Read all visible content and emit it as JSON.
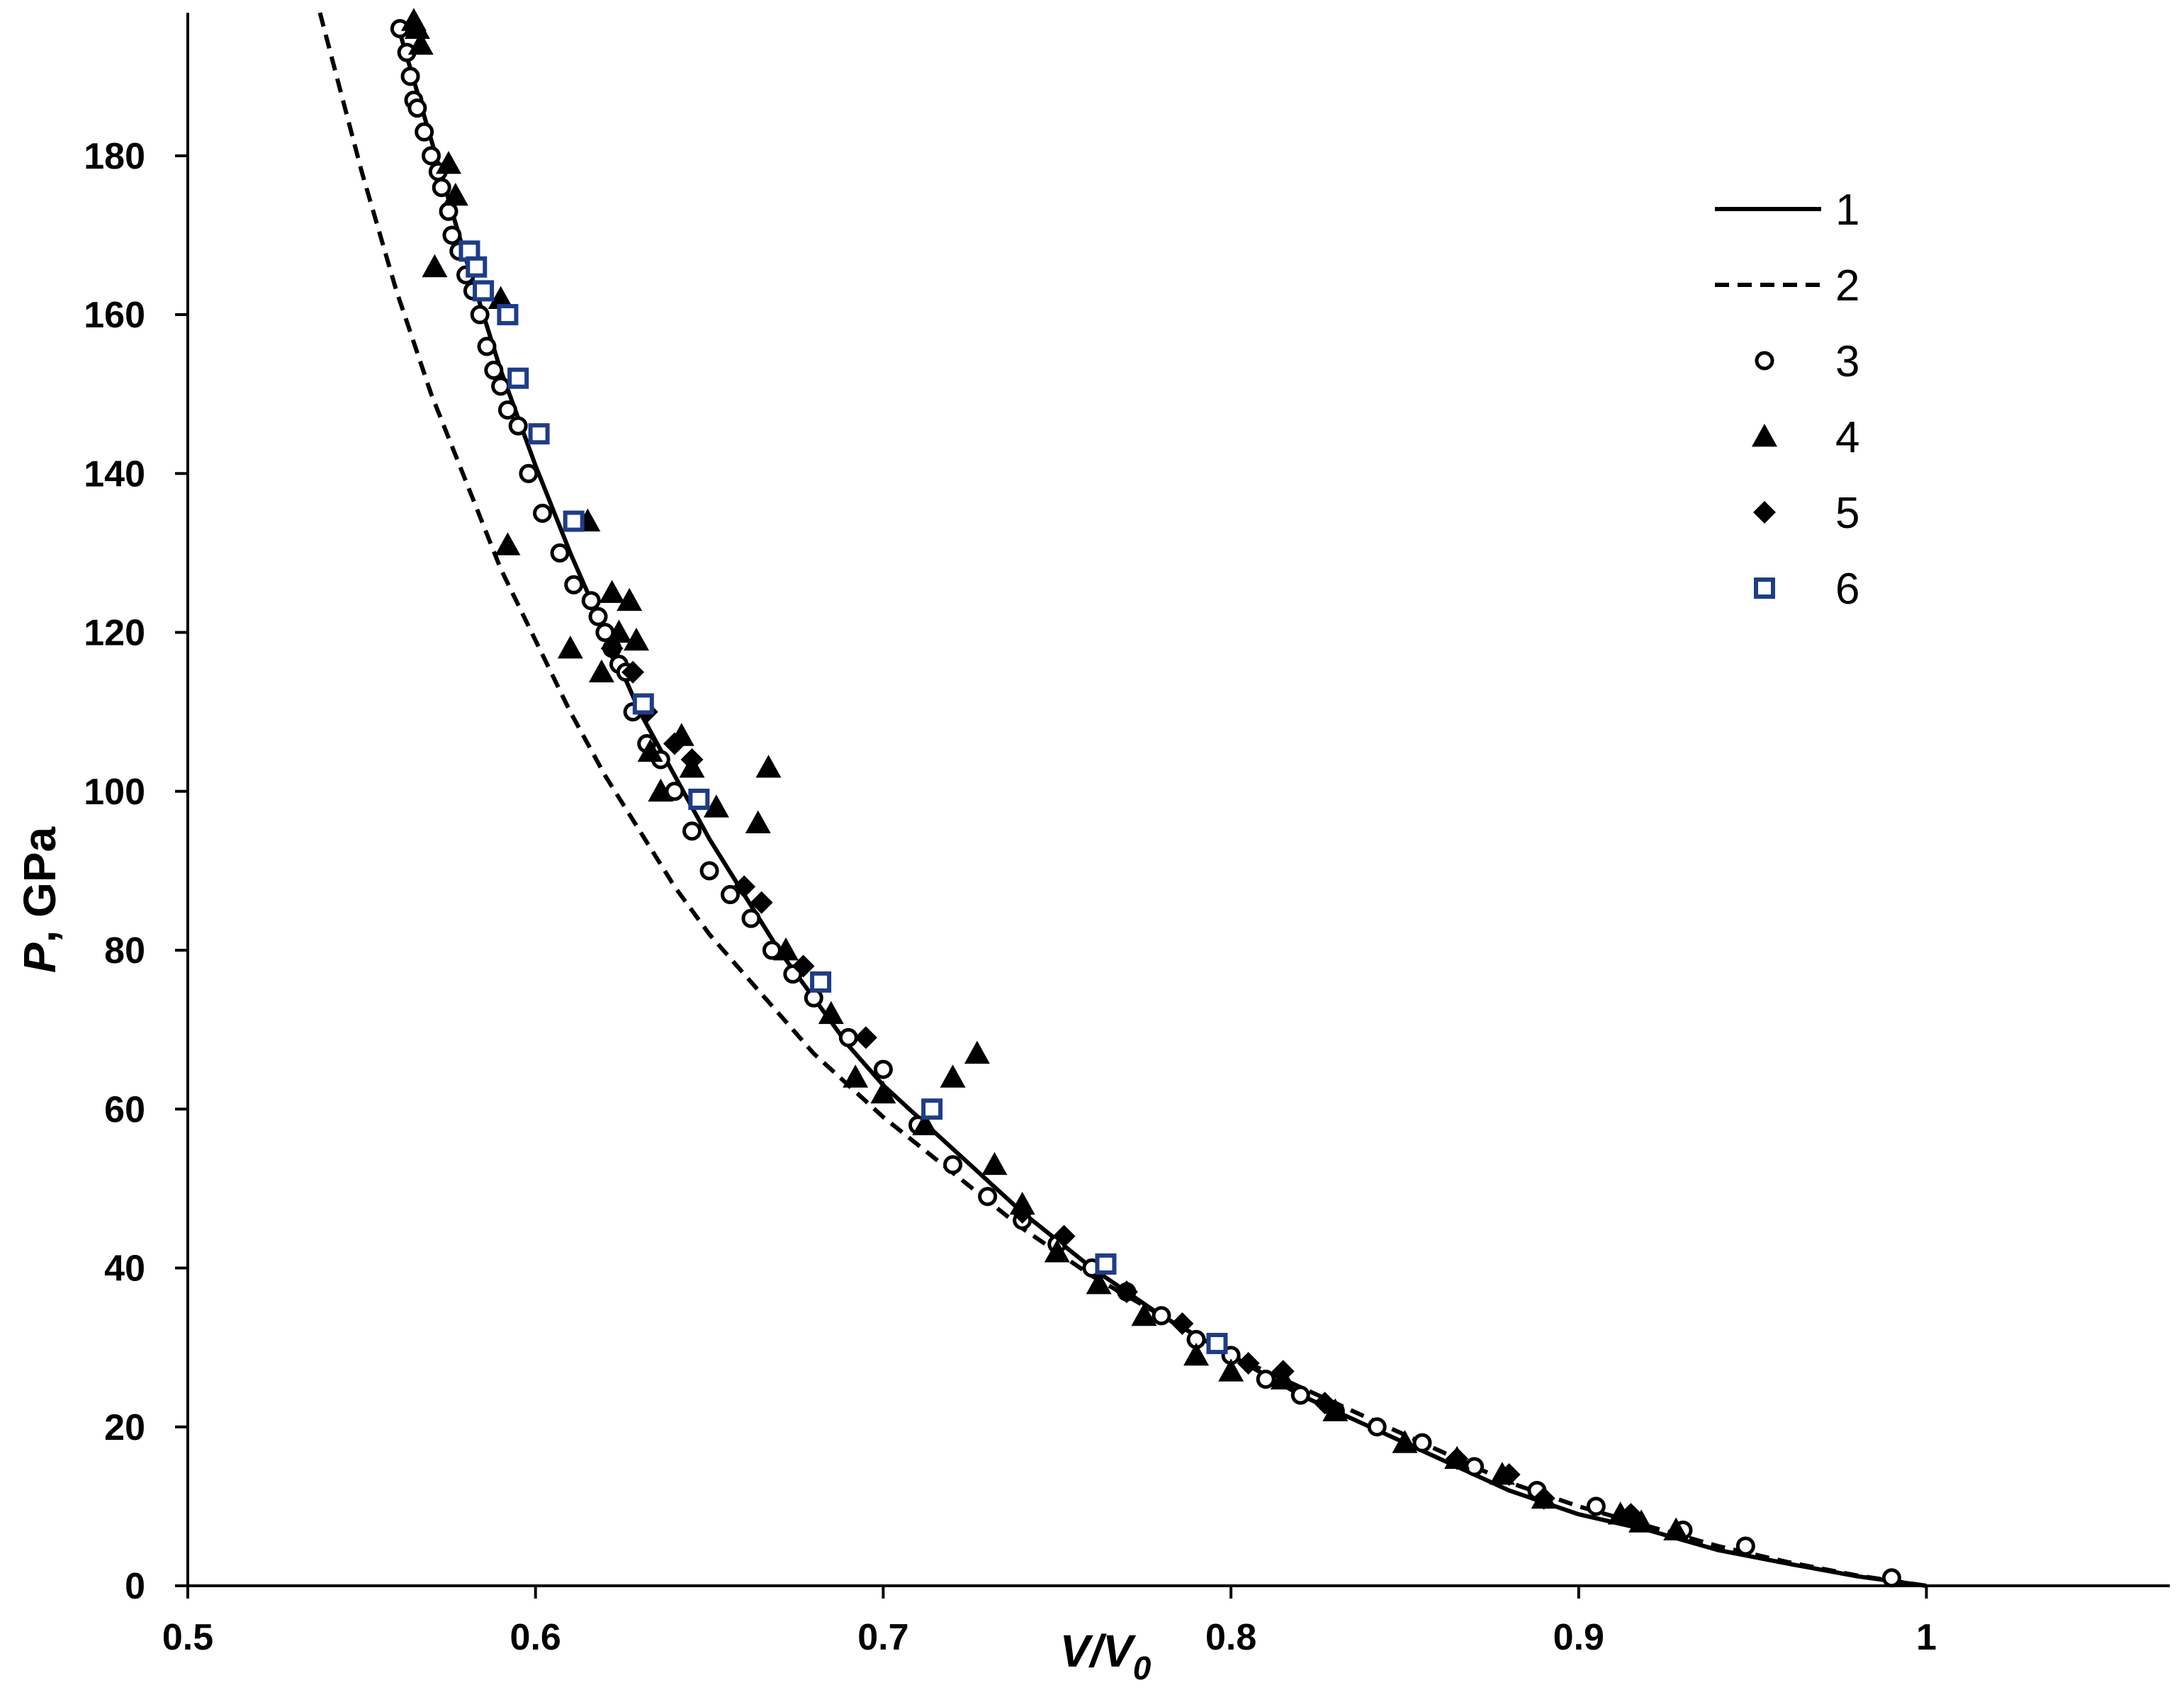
{
  "chart_data": {
    "type": "scatter",
    "title": "",
    "xlabel": {
      "main": "V/V",
      "sub": "0"
    },
    "ylabel": {
      "main": "P",
      "rest": ", GPa"
    },
    "xlim": [
      0.5,
      1.07
    ],
    "ylim": [
      0,
      198
    ],
    "xticks": [
      "0.5",
      "0.6",
      "0.7",
      "0.8",
      "0.9",
      "1"
    ],
    "yticks": [
      "0",
      "20",
      "40",
      "60",
      "80",
      "100",
      "120",
      "140",
      "160",
      "180"
    ],
    "grid": false,
    "legend_position": "top-right",
    "series": [
      {
        "name": "1",
        "kind": "line",
        "style": "solid",
        "color": "#000000",
        "x": [
          0.56,
          0.57,
          0.58,
          0.59,
          0.6,
          0.61,
          0.62,
          0.63,
          0.64,
          0.65,
          0.66,
          0.67,
          0.68,
          0.69,
          0.7,
          0.72,
          0.74,
          0.76,
          0.78,
          0.8,
          0.82,
          0.84,
          0.86,
          0.88,
          0.9,
          0.92,
          0.94,
          0.96,
          0.98,
          1.0
        ],
        "y": [
          197,
          182,
          167,
          153,
          141,
          130,
          120,
          110,
          102,
          94,
          87,
          80,
          74,
          68,
          63,
          55,
          47,
          40,
          34,
          29,
          24,
          20,
          16,
          12,
          9,
          7,
          4.5,
          2.8,
          1.2,
          0
        ]
      },
      {
        "name": "2",
        "kind": "line",
        "style": "dashed",
        "color": "#000000",
        "x": [
          0.538,
          0.55,
          0.56,
          0.57,
          0.58,
          0.59,
          0.6,
          0.61,
          0.62,
          0.63,
          0.64,
          0.65,
          0.66,
          0.67,
          0.68,
          0.7,
          0.72,
          0.74,
          0.76,
          0.78,
          0.8,
          0.82,
          0.84,
          0.86,
          0.88,
          0.9,
          0.92,
          0.94,
          0.96,
          0.98,
          1.0
        ],
        "y": [
          198,
          178,
          163,
          150,
          139,
          128,
          119,
          110,
          102,
          95,
          88,
          82,
          77,
          72,
          67,
          59,
          52,
          45,
          39,
          34,
          29,
          25,
          21,
          17,
          13,
          10,
          7.5,
          5,
          3,
          1.3,
          0
        ]
      },
      {
        "name": "3",
        "kind": "scatter",
        "marker": "open-circle",
        "color": "#000000",
        "x": [
          0.561,
          0.563,
          0.564,
          0.565,
          0.566,
          0.568,
          0.57,
          0.572,
          0.573,
          0.575,
          0.576,
          0.578,
          0.58,
          0.582,
          0.584,
          0.586,
          0.588,
          0.59,
          0.592,
          0.595,
          0.598,
          0.602,
          0.607,
          0.611,
          0.616,
          0.618,
          0.62,
          0.622,
          0.624,
          0.626,
          0.628,
          0.632,
          0.636,
          0.64,
          0.645,
          0.65,
          0.656,
          0.662,
          0.668,
          0.674,
          0.68,
          0.69,
          0.7,
          0.71,
          0.72,
          0.73,
          0.74,
          0.75,
          0.76,
          0.77,
          0.78,
          0.79,
          0.8,
          0.81,
          0.82,
          0.83,
          0.842,
          0.855,
          0.87,
          0.888,
          0.905,
          0.93,
          0.948,
          0.99
        ],
        "y": [
          196,
          193,
          190,
          187,
          186,
          183,
          180,
          178,
          176,
          173,
          170,
          168,
          165,
          163,
          160,
          156,
          153,
          151,
          148,
          146,
          140,
          135,
          130,
          126,
          124,
          122,
          120,
          118,
          116,
          115,
          110,
          106,
          104,
          100,
          95,
          90,
          87,
          84,
          80,
          77,
          74,
          69,
          65,
          58,
          53,
          49,
          46,
          43,
          40,
          37,
          34,
          31,
          29,
          26,
          24,
          22,
          20,
          18,
          15,
          12,
          10,
          7,
          5,
          1
        ]
      },
      {
        "name": "4",
        "kind": "scatter",
        "marker": "filled-triangle",
        "color": "#000000",
        "x": [
          0.565,
          0.566,
          0.567,
          0.571,
          0.575,
          0.577,
          0.59,
          0.592,
          0.61,
          0.615,
          0.619,
          0.622,
          0.624,
          0.627,
          0.629,
          0.633,
          0.636,
          0.642,
          0.645,
          0.652,
          0.664,
          0.667,
          0.672,
          0.685,
          0.692,
          0.7,
          0.712,
          0.72,
          0.727,
          0.732,
          0.74,
          0.75,
          0.762,
          0.775,
          0.79,
          0.8,
          0.815,
          0.83,
          0.85,
          0.865,
          0.878,
          0.89,
          0.912,
          0.918,
          0.928
        ],
        "y": [
          197,
          196,
          194,
          166,
          179,
          175,
          162,
          131,
          118,
          134,
          115,
          125,
          120,
          124,
          119,
          105,
          100,
          107,
          103,
          98,
          96,
          103,
          80,
          72,
          64,
          62,
          58,
          64,
          67,
          53,
          48,
          42,
          38,
          34,
          29,
          27,
          26,
          22,
          18,
          16,
          14,
          11,
          9,
          8,
          7
        ]
      },
      {
        "name": "5",
        "kind": "scatter",
        "marker": "filled-diamond",
        "color": "#000000",
        "x": [
          0.622,
          0.628,
          0.632,
          0.64,
          0.645,
          0.66,
          0.665,
          0.677,
          0.695,
          0.74,
          0.752,
          0.77,
          0.786,
          0.805,
          0.815,
          0.827,
          0.865,
          0.88,
          0.89,
          0.915
        ],
        "y": [
          118,
          115,
          110,
          106,
          104,
          88,
          86,
          78,
          69,
          47,
          44,
          37,
          33,
          28,
          27,
          23,
          16,
          14,
          11,
          9
        ]
      },
      {
        "name": "6",
        "kind": "scatter",
        "marker": "open-square",
        "color": "#1f3c88",
        "x": [
          0.581,
          0.583,
          0.585,
          0.592,
          0.595,
          0.601,
          0.611,
          0.631,
          0.647,
          0.682,
          0.714,
          0.764,
          0.796
        ],
        "y": [
          168,
          166,
          163,
          160,
          152,
          145,
          134,
          111,
          99,
          76,
          60,
          40.5,
          30.5
        ]
      }
    ]
  }
}
